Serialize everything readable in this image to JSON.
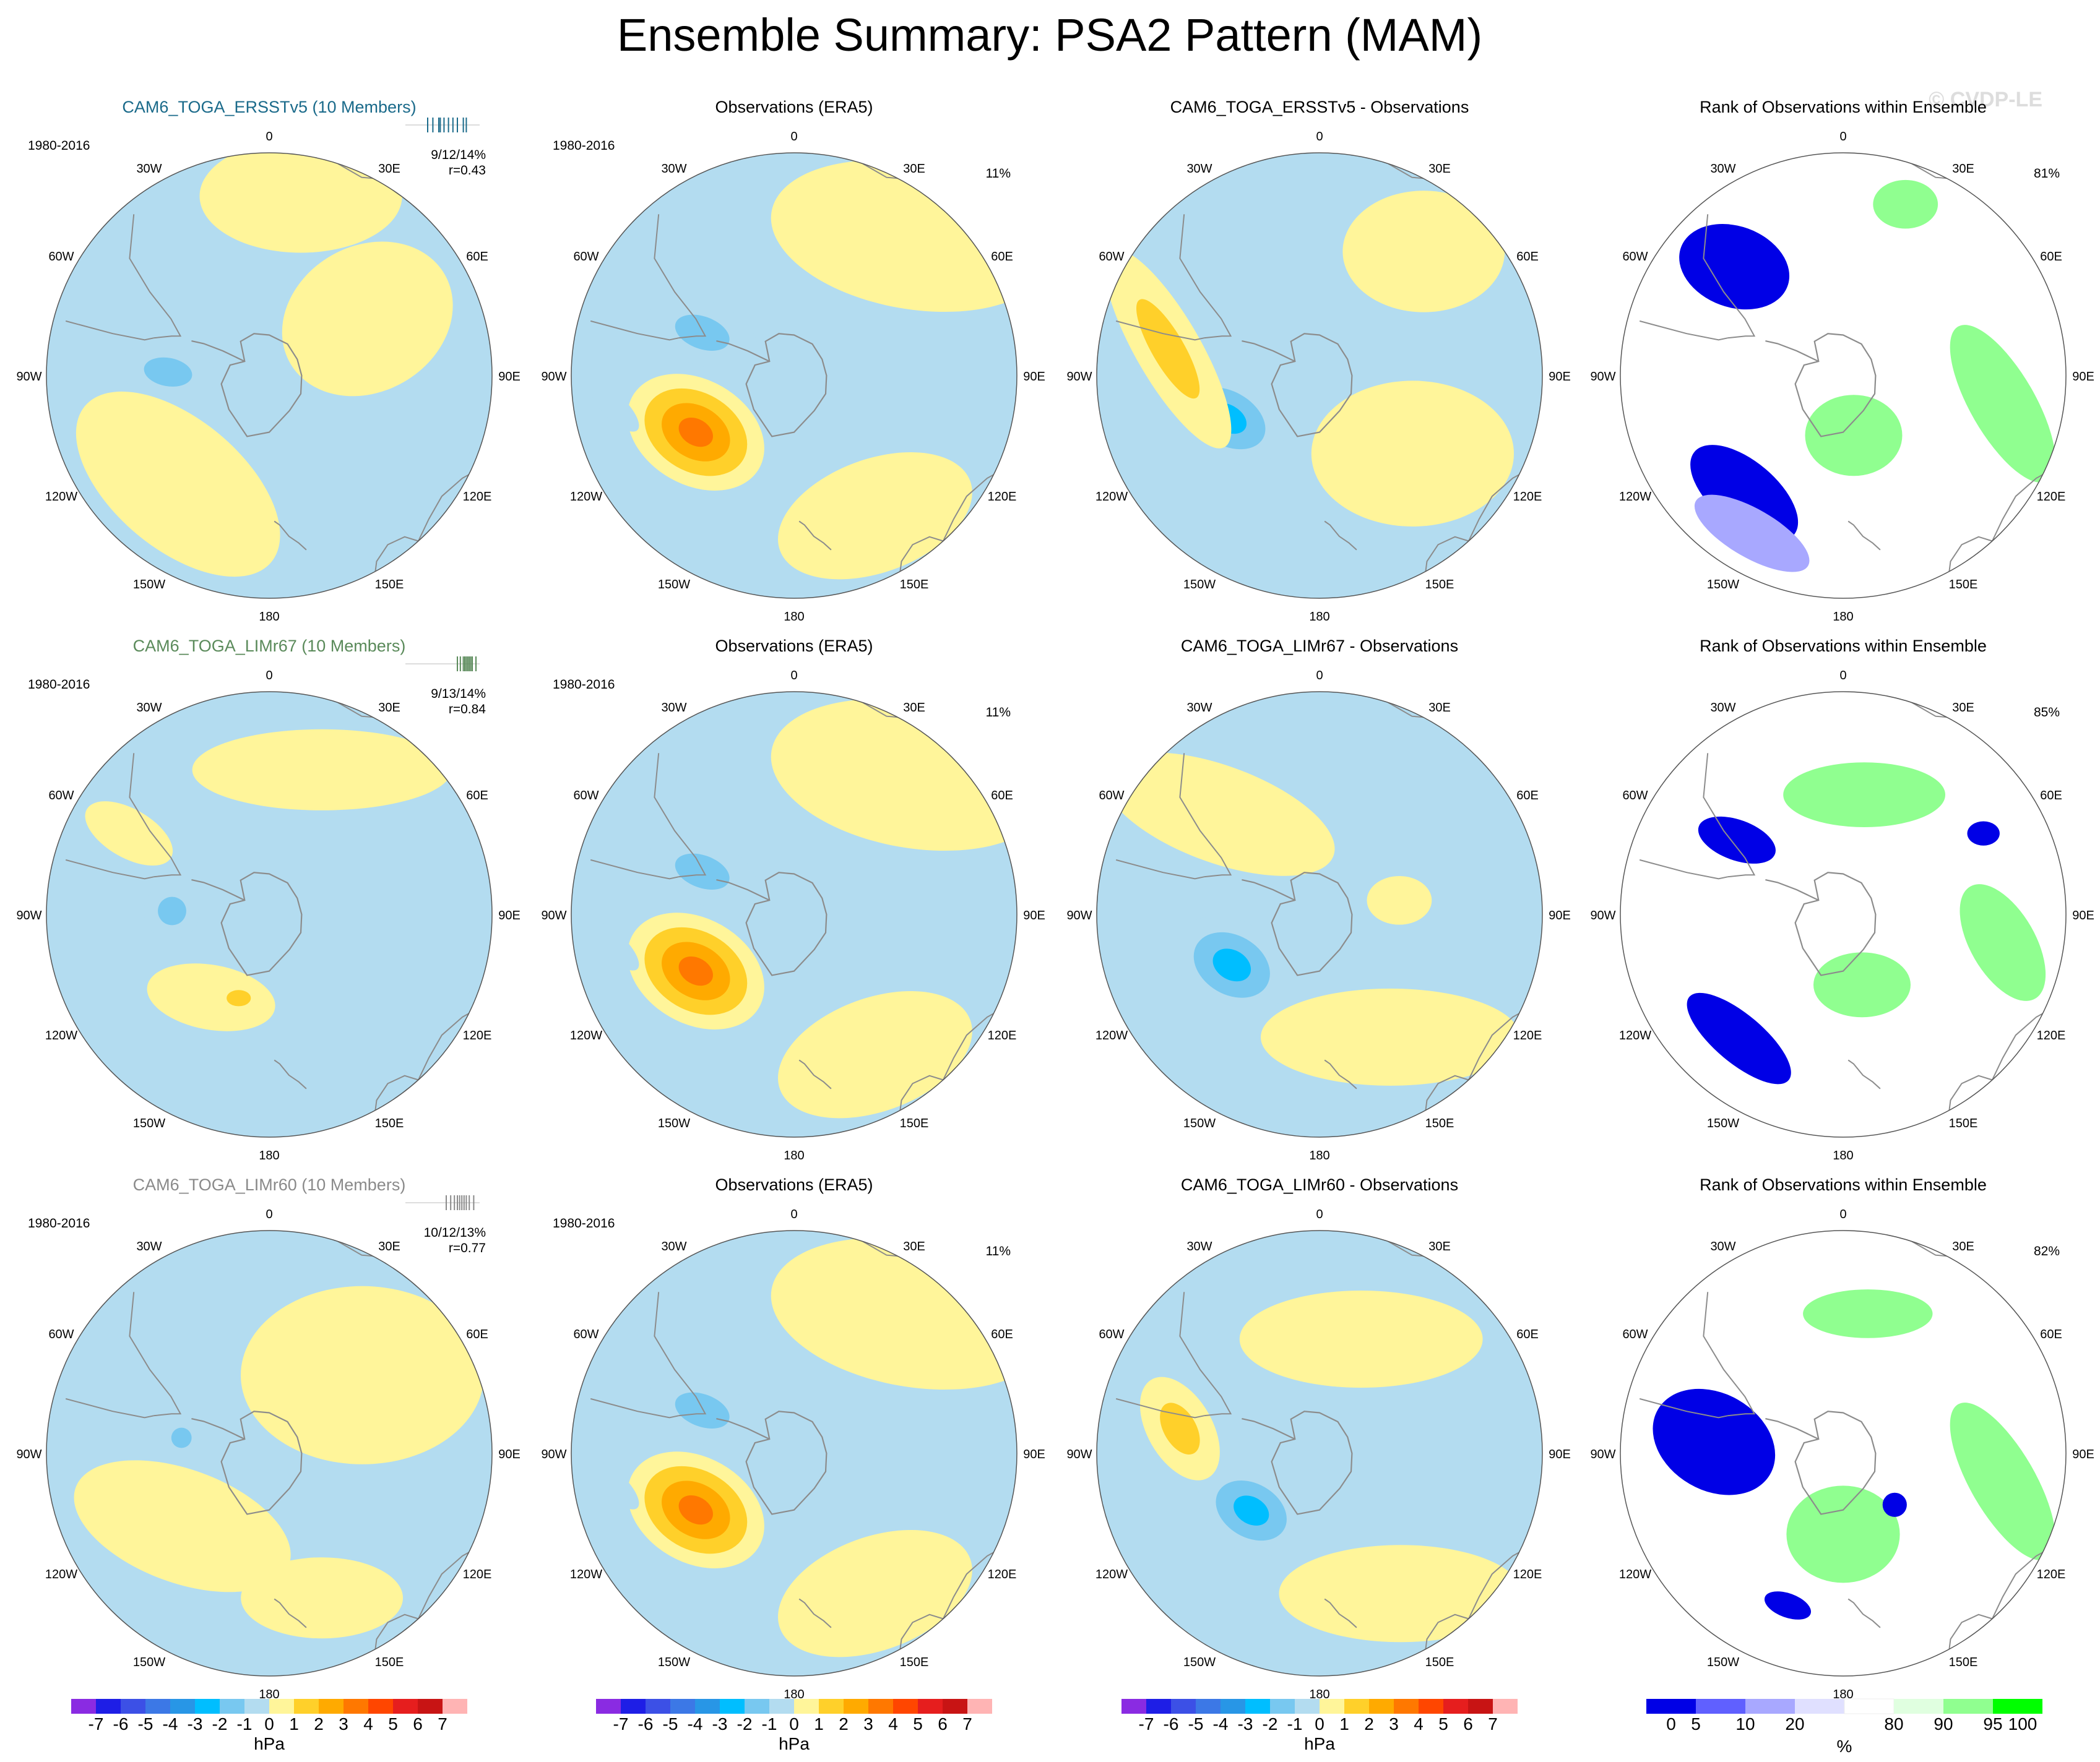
{
  "figure": {
    "title": "Ensemble Summary: PSA2 Pattern (MAM)",
    "watermark": "© CVDP-LE",
    "colors": {
      "ocean_base": "#b3dcf0",
      "land_line": "#8c8c8c",
      "rank_mid": "#ffffff"
    }
  },
  "chart_data": {
    "type": "polar-map-panel-grid",
    "projection": "south-polar stereographic",
    "longitude_labels": [
      "0",
      "30E",
      "60E",
      "90E",
      "120E",
      "150E",
      "180",
      "150W",
      "120W",
      "90W",
      "60W",
      "30W"
    ],
    "rows": [
      {
        "model": {
          "title": "CAM6_TOGA_ERSSTv5 (10 Members)",
          "title_color": "#1a6a8a",
          "period": "1980-2016",
          "stats": "9/12/14%",
          "corr": "r=0.43",
          "tick_values": [
            0.3,
            0.37,
            0.45,
            0.47,
            0.52,
            0.58,
            0.64,
            0.7,
            0.78,
            0.82
          ],
          "anomalies": [
            {
              "lon": -88,
              "colat_deg": 25,
              "a": 12,
              "b": 7,
              "rot": 10,
              "value": -1.5
            },
            {
              "lon": 60,
              "colat_deg": 28,
              "a": 22,
              "b": 18,
              "rot": -30,
              "value": 0.5
            },
            {
              "lon": -140,
              "colat_deg": 35,
              "a": 30,
              "b": 16,
              "rot": 40,
              "value": 0.5
            },
            {
              "lon": 10,
              "colat_deg": 45,
              "a": 25,
              "b": 14,
              "rot": 0,
              "value": 0.5
            }
          ]
        },
        "observations": {
          "title": "Observations (ERA5)",
          "period": "1980-2016",
          "pct": "11%",
          "anomalies": [
            {
              "lon": -120,
              "colat_deg": 28,
              "a": 18,
              "b": 13,
              "rot": 30,
              "value": 3.5
            },
            {
              "lon": -65,
              "colat_deg": 25,
              "a": 14,
              "b": 8,
              "rot": 20,
              "value": -1.8
            },
            {
              "lon": 40,
              "colat_deg": 45,
              "a": 35,
              "b": 18,
              "rot": 10,
              "value": 0.5
            },
            {
              "lon": 150,
              "colat_deg": 40,
              "a": 25,
              "b": 14,
              "rot": -20,
              "value": 0.5
            },
            {
              "lon": -100,
              "colat_deg": 45,
              "a": 8,
              "b": 3,
              "rot": 45,
              "value": -1.2
            }
          ]
        },
        "difference": {
          "title": "CAM6_TOGA_ERSSTv5 - Observations",
          "anomalies": [
            {
              "lon": -115,
              "colat_deg": 25,
              "a": 15,
              "b": 10,
              "rot": 30,
              "value": -2.5
            },
            {
              "lon": -80,
              "colat_deg": 38,
              "a": 28,
              "b": 8,
              "rot": 60,
              "value": 1.5
            },
            {
              "lon": 130,
              "colat_deg": 30,
              "a": 25,
              "b": 18,
              "rot": 0,
              "value": 0.5
            },
            {
              "lon": 40,
              "colat_deg": 40,
              "a": 20,
              "b": 15,
              "rot": 0,
              "value": 0.5
            }
          ]
        },
        "rank": {
          "title": "Rank of Observations within Ensemble",
          "pct": "81%",
          "regions": [
            {
              "lon": -45,
              "colat_deg": 38,
              "a": 14,
              "b": 10,
              "rot": 20,
              "value": 2
            },
            {
              "lon": -140,
              "colat_deg": 38,
              "a": 16,
              "b": 8,
              "rot": 40,
              "value": 2
            },
            {
              "lon": 170,
              "colat_deg": 15,
              "a": 12,
              "b": 10,
              "rot": 0,
              "value": 98
            },
            {
              "lon": 100,
              "colat_deg": 40,
              "a": 22,
              "b": 8,
              "rot": 60,
              "value": 98
            },
            {
              "lon": 20,
              "colat_deg": 45,
              "a": 8,
              "b": 6,
              "rot": 0,
              "value": 98
            },
            {
              "lon": -150,
              "colat_deg": 45,
              "a": 16,
              "b": 6,
              "rot": 30,
              "value": 15
            }
          ]
        }
      },
      {
        "model": {
          "title": "CAM6_TOGA_LIMr67 (10 Members)",
          "title_color": "#5a8a5a",
          "period": "1980-2016",
          "stats": "9/13/14%",
          "corr": "r=0.84",
          "tick_values": [
            0.7,
            0.74,
            0.78,
            0.8,
            0.82,
            0.84,
            0.86,
            0.88,
            0.9,
            0.95
          ],
          "anomalies": [
            {
              "lon": -88,
              "colat_deg": 24,
              "a": 7,
              "b": 7,
              "rot": 0,
              "value": -1.5
            },
            {
              "lon": -145,
              "colat_deg": 25,
              "a": 16,
              "b": 8,
              "rot": 10,
              "value": 0.5
            },
            {
              "lon": -160,
              "colat_deg": 22,
              "a": 6,
              "b": 4,
              "rot": 0,
              "value": 1.5
            },
            {
              "lon": 20,
              "colat_deg": 38,
              "a": 32,
              "b": 10,
              "rot": 0,
              "value": 0.5
            },
            {
              "lon": -60,
              "colat_deg": 40,
              "a": 12,
              "b": 6,
              "rot": 30,
              "value": 0.5
            }
          ]
        },
        "observations": {
          "title": "Observations (ERA5)",
          "period": "1980-2016",
          "pct": "11%",
          "anomalies": [
            {
              "lon": -120,
              "colat_deg": 28,
              "a": 18,
              "b": 13,
              "rot": 30,
              "value": 3.5
            },
            {
              "lon": -65,
              "colat_deg": 25,
              "a": 14,
              "b": 8,
              "rot": 20,
              "value": -1.8
            },
            {
              "lon": 40,
              "colat_deg": 45,
              "a": 35,
              "b": 18,
              "rot": 10,
              "value": 0.5
            },
            {
              "lon": 150,
              "colat_deg": 40,
              "a": 25,
              "b": 14,
              "rot": -20,
              "value": 0.5
            },
            {
              "lon": -100,
              "colat_deg": 45,
              "a": 8,
              "b": 3,
              "rot": 45,
              "value": -1.2
            }
          ]
        },
        "difference": {
          "title": "CAM6_TOGA_LIMr67 - Observations",
          "anomalies": [
            {
              "lon": -120,
              "colat_deg": 25,
              "a": 15,
              "b": 11,
              "rot": 30,
              "value": -2.5
            },
            {
              "lon": -45,
              "colat_deg": 35,
              "a": 30,
              "b": 12,
              "rot": 20,
              "value": 0.5
            },
            {
              "lon": 150,
              "colat_deg": 35,
              "a": 32,
              "b": 12,
              "rot": 0,
              "value": 0.5
            },
            {
              "lon": 80,
              "colat_deg": 20,
              "a": 8,
              "b": 6,
              "rot": 0,
              "value": 0.5
            }
          ]
        },
        "rank": {
          "title": "Rank of Observations within Ensemble",
          "pct": "85%",
          "regions": [
            {
              "lon": -55,
              "colat_deg": 32,
              "a": 10,
              "b": 5,
              "rot": 20,
              "value": 2
            },
            {
              "lon": -140,
              "colat_deg": 40,
              "a": 16,
              "b": 6,
              "rot": 40,
              "value": 2
            },
            {
              "lon": 10,
              "colat_deg": 30,
              "a": 20,
              "b": 8,
              "rot": 0,
              "value": 98
            },
            {
              "lon": 165,
              "colat_deg": 18,
              "a": 12,
              "b": 8,
              "rot": 0,
              "value": 98
            },
            {
              "lon": 100,
              "colat_deg": 40,
              "a": 16,
              "b": 8,
              "rot": 60,
              "value": 98
            },
            {
              "lon": 60,
              "colat_deg": 40,
              "a": 4,
              "b": 3,
              "rot": 0,
              "value": 2
            }
          ]
        }
      },
      {
        "model": {
          "title": "CAM6_TOGA_LIMr60 (10 Members)",
          "title_color": "#8a8a8a",
          "period": "1980-2016",
          "stats": "10/12/13%",
          "corr": "r=0.77",
          "tick_values": [
            0.55,
            0.61,
            0.66,
            0.7,
            0.73,
            0.76,
            0.79,
            0.82,
            0.86,
            0.92
          ],
          "anomalies": [
            {
              "lon": -80,
              "colat_deg": 22,
              "a": 5,
              "b": 5,
              "rot": 0,
              "value": -1.5
            },
            {
              "lon": -125,
              "colat_deg": 30,
              "a": 14,
              "b": 8,
              "rot": 30,
              "value": 1.5
            },
            {
              "lon": -130,
              "colat_deg": 28,
              "a": 28,
              "b": 14,
              "rot": 20,
              "value": 0.5
            },
            {
              "lon": 50,
              "colat_deg": 30,
              "a": 30,
              "b": 22,
              "rot": 0,
              "value": 0.5
            },
            {
              "lon": 160,
              "colat_deg": 38,
              "a": 20,
              "b": 10,
              "rot": 0,
              "value": 0.5
            }
          ]
        },
        "observations": {
          "title": "Observations (ERA5)",
          "period": "1980-2016",
          "pct": "11%",
          "anomalies": [
            {
              "lon": -120,
              "colat_deg": 28,
              "a": 18,
              "b": 13,
              "rot": 30,
              "value": 3.5
            },
            {
              "lon": -65,
              "colat_deg": 25,
              "a": 14,
              "b": 8,
              "rot": 20,
              "value": -1.8
            },
            {
              "lon": 40,
              "colat_deg": 45,
              "a": 35,
              "b": 18,
              "rot": 10,
              "value": 0.5
            },
            {
              "lon": 150,
              "colat_deg": 40,
              "a": 25,
              "b": 14,
              "rot": -20,
              "value": 0.5
            },
            {
              "lon": -100,
              "colat_deg": 45,
              "a": 8,
              "b": 3,
              "rot": 45,
              "value": -1.2
            }
          ]
        },
        "difference": {
          "title": "CAM6_TOGA_LIMr60 - Observations",
          "anomalies": [
            {
              "lon": -130,
              "colat_deg": 22,
              "a": 14,
              "b": 10,
              "rot": 30,
              "value": -2.5
            },
            {
              "lon": -80,
              "colat_deg": 35,
              "a": 14,
              "b": 8,
              "rot": 60,
              "value": 1.5
            },
            {
              "lon": 20,
              "colat_deg": 30,
              "a": 30,
              "b": 12,
              "rot": 0,
              "value": 0.5
            },
            {
              "lon": 150,
              "colat_deg": 40,
              "a": 30,
              "b": 12,
              "rot": 0,
              "value": 0.5
            }
          ]
        },
        "rank": {
          "title": "Rank of Observations within Ensemble",
          "pct": "82%",
          "regions": [
            {
              "lon": -85,
              "colat_deg": 32,
              "a": 16,
              "b": 12,
              "rot": 30,
              "value": 2
            },
            {
              "lon": -160,
              "colat_deg": 40,
              "a": 6,
              "b": 3,
              "rot": 20,
              "value": 2
            },
            {
              "lon": 180,
              "colat_deg": 20,
              "a": 14,
              "b": 12,
              "rot": 0,
              "value": 98
            },
            {
              "lon": 10,
              "colat_deg": 35,
              "a": 16,
              "b": 6,
              "rot": 0,
              "value": 98
            },
            {
              "lon": 100,
              "colat_deg": 40,
              "a": 22,
              "b": 8,
              "rot": 60,
              "value": 98
            },
            {
              "lon": 135,
              "colat_deg": 18,
              "a": 3,
              "b": 3,
              "rot": 0,
              "value": 2
            }
          ]
        }
      }
    ],
    "colorbar_hpa": {
      "tick_labels": [
        "-7",
        "-6",
        "-5",
        "-4",
        "-3",
        "-2",
        "-1",
        "0",
        "1",
        "2",
        "3",
        "4",
        "5",
        "6",
        "7"
      ],
      "unit": "hPa",
      "colors": [
        "#8a2be2",
        "#1e1ee6",
        "#3c50e6",
        "#3c78e6",
        "#2896e6",
        "#00beff",
        "#78c8f0",
        "#b3dcf0",
        "#fff59a",
        "#ffd02a",
        "#ffaa00",
        "#ff7800",
        "#ff4600",
        "#e61e1e",
        "#c81414",
        "#ffb4b4"
      ]
    },
    "colorbar_rank": {
      "tick_labels": [
        "0",
        "5",
        "10",
        "20",
        "80",
        "90",
        "95",
        "100"
      ],
      "unit": "%",
      "bounds": [
        0,
        5,
        10,
        20,
        80,
        90,
        95,
        100
      ],
      "colors": [
        "#0000e6",
        "#6060ff",
        "#a8a8ff",
        "#e0e0ff",
        "#ffffff",
        "#e0ffe0",
        "#90ff90",
        "#00ff00"
      ]
    }
  }
}
